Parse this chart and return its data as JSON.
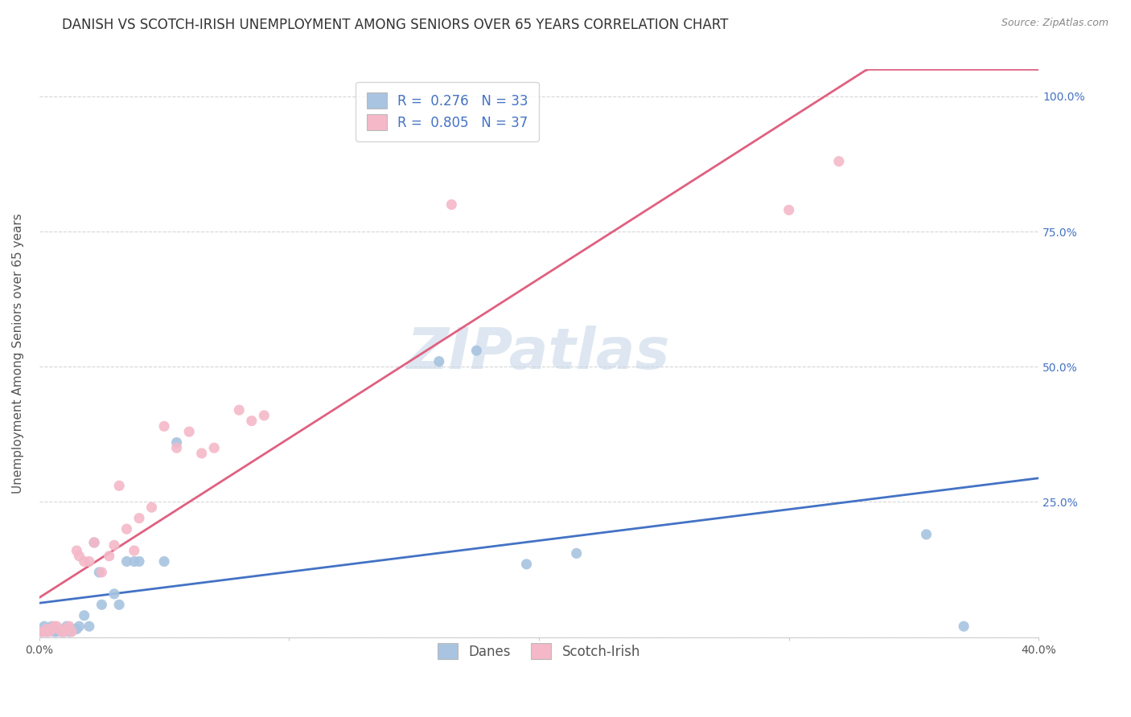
{
  "title": "DANISH VS SCOTCH-IRISH UNEMPLOYMENT AMONG SENIORS OVER 65 YEARS CORRELATION CHART",
  "source": "Source: ZipAtlas.com",
  "ylabel": "Unemployment Among Seniors over 65 years",
  "xlim": [
    0.0,
    0.4
  ],
  "ylim": [
    0.0,
    1.05
  ],
  "xticks": [
    0.0,
    0.1,
    0.2,
    0.3,
    0.4
  ],
  "xticklabels": [
    "0.0%",
    "",
    "",
    "",
    "40.0%"
  ],
  "yticks": [
    0.0,
    0.25,
    0.5,
    0.75,
    1.0
  ],
  "right_yticklabels": [
    "",
    "25.0%",
    "50.0%",
    "75.0%",
    "100.0%"
  ],
  "danes_R": 0.276,
  "danes_N": 33,
  "scotch_R": 0.805,
  "scotch_N": 37,
  "danes_color": "#a8c4e0",
  "danes_line_color": "#4472c4",
  "scotch_color": "#f4b8c8",
  "scotch_line_color": "#e06080",
  "danes_x": [
    0.001,
    0.002,
    0.003,
    0.004,
    0.005,
    0.006,
    0.007,
    0.008,
    0.009,
    0.01,
    0.011,
    0.012,
    0.014,
    0.015,
    0.016,
    0.018,
    0.02,
    0.022,
    0.024,
    0.025,
    0.03,
    0.032,
    0.035,
    0.038,
    0.04,
    0.05,
    0.055,
    0.16,
    0.175,
    0.195,
    0.215,
    0.355,
    0.37
  ],
  "danes_y": [
    0.01,
    0.02,
    0.01,
    0.015,
    0.02,
    0.01,
    0.01,
    0.015,
    0.01,
    0.01,
    0.02,
    0.01,
    0.015,
    0.015,
    0.02,
    0.04,
    0.02,
    0.175,
    0.12,
    0.06,
    0.08,
    0.06,
    0.14,
    0.14,
    0.14,
    0.14,
    0.36,
    0.51,
    0.53,
    0.135,
    0.155,
    0.19,
    0.02
  ],
  "scotch_x": [
    0.001,
    0.002,
    0.003,
    0.004,
    0.005,
    0.006,
    0.007,
    0.008,
    0.009,
    0.01,
    0.011,
    0.012,
    0.013,
    0.015,
    0.016,
    0.018,
    0.02,
    0.022,
    0.025,
    0.028,
    0.03,
    0.032,
    0.035,
    0.038,
    0.04,
    0.045,
    0.05,
    0.055,
    0.06,
    0.065,
    0.07,
    0.08,
    0.085,
    0.09,
    0.165,
    0.3,
    0.32
  ],
  "scotch_y": [
    0.01,
    0.01,
    0.015,
    0.01,
    0.015,
    0.02,
    0.02,
    0.015,
    0.01,
    0.01,
    0.015,
    0.02,
    0.01,
    0.16,
    0.15,
    0.14,
    0.14,
    0.175,
    0.12,
    0.15,
    0.17,
    0.28,
    0.2,
    0.16,
    0.22,
    0.24,
    0.39,
    0.35,
    0.38,
    0.34,
    0.35,
    0.42,
    0.4,
    0.41,
    0.8,
    0.79,
    0.88
  ],
  "background_color": "#ffffff",
  "grid_color": "#cccccc",
  "watermark_text": "ZIPatlas",
  "watermark_color": "#c8d8e8",
  "title_fontsize": 12,
  "axis_label_fontsize": 11,
  "tick_fontsize": 10,
  "legend_fontsize": 12
}
